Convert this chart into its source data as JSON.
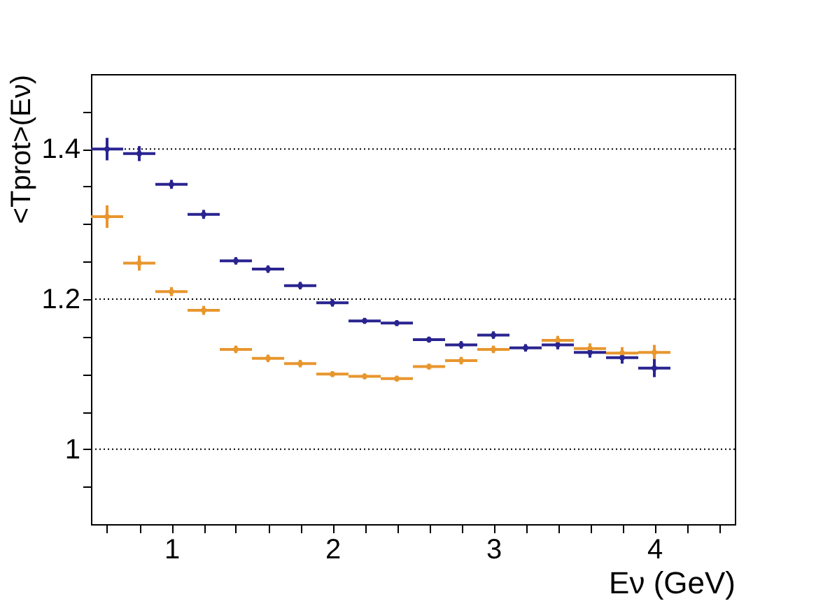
{
  "chart_data": {
    "type": "scatter",
    "xlabel": "Eν (GeV)",
    "ylabel": "<Tprot>(Eν)",
    "xlim": [
      0.5,
      4.5
    ],
    "ylim": [
      0.9,
      1.5
    ],
    "xticks": [
      {
        "value": 0.6,
        "label": null
      },
      {
        "value": 0.8,
        "label": null
      },
      1,
      {
        "value": 1.2,
        "label": null
      },
      {
        "value": 1.4,
        "label": null
      },
      {
        "value": 1.6,
        "label": null
      },
      {
        "value": 1.8,
        "label": null
      },
      2,
      {
        "value": 2.2,
        "label": null
      },
      {
        "value": 2.4,
        "label": null
      },
      {
        "value": 2.6,
        "label": null
      },
      {
        "value": 2.8,
        "label": null
      },
      3,
      {
        "value": 3.2,
        "label": null
      },
      {
        "value": 3.4,
        "label": null
      },
      {
        "value": 3.6,
        "label": null
      },
      {
        "value": 3.8,
        "label": null
      },
      4,
      {
        "value": 4.2,
        "label": null
      },
      {
        "value": 4.4,
        "label": null
      }
    ],
    "yticks": [
      {
        "value": 0.95,
        "label": null
      },
      1,
      {
        "value": 1.05,
        "label": null
      },
      {
        "value": 1.1,
        "label": null
      },
      {
        "value": 1.15,
        "label": null
      },
      1.2,
      {
        "value": 1.25,
        "label": null
      },
      {
        "value": 1.3,
        "label": null
      },
      {
        "value": 1.35,
        "label": null
      },
      1.4,
      {
        "value": 1.45,
        "label": null
      }
    ],
    "grid": "y",
    "x": [
      0.6,
      0.8,
      1.0,
      1.2,
      1.4,
      1.6,
      1.8,
      2.0,
      2.2,
      2.4,
      2.6,
      2.8,
      3.0,
      3.2,
      3.4,
      3.6,
      3.8,
      4.0
    ],
    "series": [
      {
        "color": "#e8962e",
        "values": [
          1.31,
          1.248,
          1.21,
          1.185,
          1.133,
          1.121,
          1.114,
          1.1,
          1.097,
          1.094,
          1.11,
          1.118,
          1.133,
          null,
          1.145,
          1.134,
          1.128,
          1.129
        ],
        "errors": [
          0.015,
          0.01,
          0.006,
          0.006,
          0.005,
          0.005,
          0.005,
          0.004,
          0.004,
          0.004,
          0.004,
          0.005,
          0.005,
          null,
          0.006,
          0.007,
          0.008,
          0.01
        ],
        "xerrors": [
          0.1,
          0.1,
          0.1,
          0.1,
          0.1,
          0.1,
          0.1,
          0.1,
          0.1,
          0.1,
          0.1,
          0.1,
          0.1,
          null,
          0.1,
          0.1,
          0.1,
          0.1
        ]
      },
      {
        "color": "#2a2490",
        "values": [
          1.4,
          1.394,
          1.353,
          1.313,
          1.251,
          1.24,
          1.218,
          1.195,
          1.171,
          1.168,
          1.146,
          1.139,
          1.152,
          1.135,
          1.139,
          1.129,
          1.122,
          1.108
        ],
        "errors": [
          0.015,
          0.01,
          0.006,
          0.006,
          0.005,
          0.005,
          0.005,
          0.005,
          0.004,
          0.004,
          0.004,
          0.005,
          0.005,
          0.005,
          0.006,
          0.007,
          0.008,
          0.012
        ],
        "xerrors": [
          0.1,
          0.1,
          0.1,
          0.1,
          0.1,
          0.1,
          0.1,
          0.1,
          0.1,
          0.1,
          0.1,
          0.1,
          0.1,
          0.1,
          0.1,
          0.1,
          0.1,
          0.1
        ]
      }
    ]
  }
}
